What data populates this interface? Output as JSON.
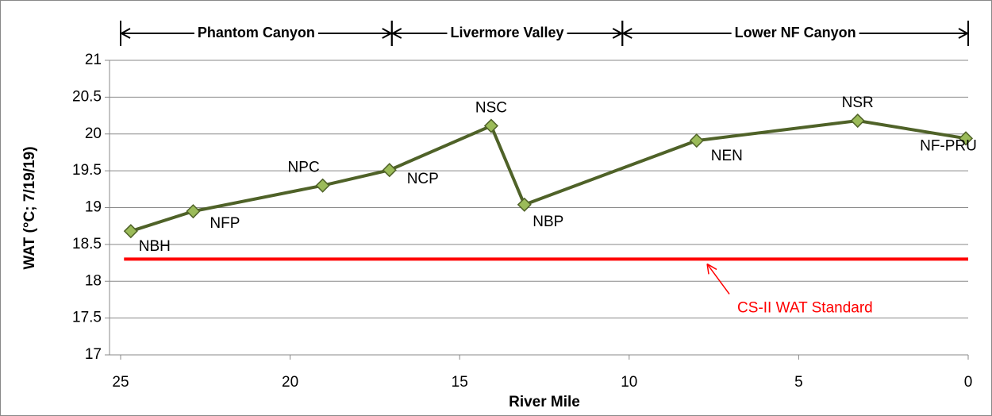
{
  "chart_data": {
    "type": "line",
    "x_label": "River Mile",
    "y_label": "WAT (°C; 7/19/19)",
    "xlim": [
      0,
      25
    ],
    "xticks": [
      25,
      20,
      15,
      10,
      5,
      0
    ],
    "x_reversed": true,
    "ylim": [
      17,
      21
    ],
    "yticks": [
      17,
      17.5,
      18,
      18.5,
      19,
      19.5,
      20,
      20.5,
      21
    ],
    "grid": true,
    "series": [
      {
        "name": "WAT",
        "color": "#4f6228",
        "marker_color": "#9bbb59",
        "x": [
          24.7,
          22.86,
          19.04,
          17.07,
          14.07,
          13.09,
          8.01,
          3.26,
          0.07
        ],
        "values": [
          18.68,
          18.95,
          19.3,
          19.51,
          20.11,
          19.04,
          19.91,
          20.18,
          19.94
        ],
        "labels": [
          "NBH",
          "NFP",
          "NPC",
          "NCP",
          "NSC",
          "NBP",
          "NEN",
          "NSR",
          "NF-PRU"
        ]
      }
    ],
    "reference_line": {
      "name": "CS-II WAT Standard",
      "value": 18.3,
      "color": "#ff0000",
      "x_start": 24.9,
      "x_end": 0,
      "arrow_x": 7.7
    },
    "reaches": [
      {
        "label": "Phantom Canyon",
        "start": 25,
        "end": 17
      },
      {
        "label": "Livermore Valley",
        "start": 17,
        "end": 10.2
      },
      {
        "label": "Lower NF Canyon",
        "start": 10.2,
        "end": 0
      }
    ]
  }
}
